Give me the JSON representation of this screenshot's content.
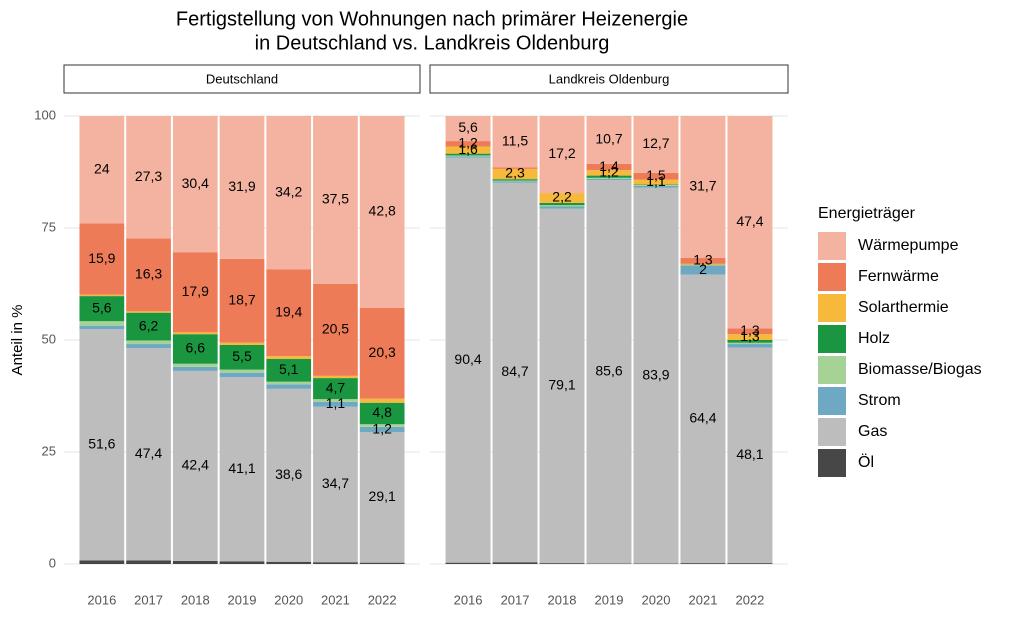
{
  "title": [
    "Fertigstellung von Wohnungen nach primärer Heizenergie",
    "in Deutschland vs. Landkreis Oldenburg"
  ],
  "y_label": "Anteil in %",
  "legend_title": "Energieträger",
  "chart_data": [
    {
      "type": "stacked_bar",
      "facet": "Deutschland",
      "categories": [
        "2016",
        "2017",
        "2018",
        "2019",
        "2020",
        "2021",
        "2022"
      ],
      "ylim": [
        0,
        100
      ],
      "yticks": [
        0,
        25,
        50,
        75,
        100
      ],
      "grid": true,
      "series": [
        {
          "name": "Wärmepumpe",
          "color": "#f4b3a0",
          "values": [
            24,
            27.3,
            30.4,
            31.9,
            34.2,
            37.5,
            42.8
          ],
          "value_labels": [
            "24",
            "27,3",
            "30,4",
            "31,9",
            "34,2",
            "37,5",
            "42,8"
          ]
        },
        {
          "name": "Fernwärme",
          "color": "#ee7b57",
          "values": [
            15.9,
            16.3,
            17.9,
            18.7,
            19.4,
            20.5,
            20.3
          ],
          "value_labels": [
            "15,9",
            "16,3",
            "17,9",
            "18,7",
            "19,4",
            "20,5",
            "20,3"
          ]
        },
        {
          "name": "Solarthermie",
          "color": "#f6b93b",
          "values": [
            0.3,
            0.3,
            0.4,
            0.5,
            0.6,
            0.5,
            0.9
          ],
          "value_labels": [
            null,
            null,
            null,
            null,
            null,
            null,
            null
          ]
        },
        {
          "name": "Holz",
          "color": "#1a9641",
          "values": [
            5.6,
            6.2,
            6.6,
            5.5,
            5.1,
            4.7,
            4.8
          ],
          "value_labels": [
            "5,6",
            "6,2",
            "6,6",
            "5,5",
            "5,1",
            "4,7",
            "4,8"
          ]
        },
        {
          "name": "Biomasse/Biogas",
          "color": "#a6d395",
          "values": [
            1.0,
            0.8,
            0.7,
            0.7,
            0.6,
            0.6,
            0.6
          ],
          "value_labels": [
            null,
            null,
            null,
            null,
            null,
            null,
            null
          ]
        },
        {
          "name": "Strom",
          "color": "#6fa8c2",
          "values": [
            0.8,
            0.9,
            0.9,
            1.0,
            1.0,
            1.1,
            1.2
          ],
          "value_labels": [
            null,
            null,
            null,
            null,
            null,
            "1,1",
            "1,2"
          ]
        },
        {
          "name": "Gas",
          "color": "#bdbdbd",
          "values": [
            51.6,
            47.4,
            42.4,
            41.1,
            38.6,
            34.7,
            29.1
          ],
          "value_labels": [
            "51,6",
            "47,4",
            "42,4",
            "41,1",
            "38,6",
            "34,7",
            "29,1"
          ]
        },
        {
          "name": "Öl",
          "color": "#474747",
          "values": [
            0.8,
            0.8,
            0.7,
            0.6,
            0.5,
            0.4,
            0.3
          ],
          "value_labels": [
            null,
            null,
            null,
            null,
            null,
            null,
            null
          ]
        }
      ]
    },
    {
      "type": "stacked_bar",
      "facet": "Landkreis Oldenburg",
      "categories": [
        "2016",
        "2017",
        "2018",
        "2019",
        "2020",
        "2021",
        "2022"
      ],
      "ylim": [
        0,
        100
      ],
      "yticks": [
        0,
        25,
        50,
        75,
        100
      ],
      "grid": true,
      "series": [
        {
          "name": "Wärmepumpe",
          "color": "#f4b3a0",
          "values": [
            5.6,
            11.5,
            17.2,
            10.7,
            12.7,
            31.7,
            47.4
          ],
          "value_labels": [
            "5,6",
            "11,5",
            "17,2",
            "10,7",
            "12,7",
            "31,7",
            "47,4"
          ]
        },
        {
          "name": "Fernwärme",
          "color": "#ee7b57",
          "values": [
            1.2,
            0.3,
            0.0,
            1.4,
            1.5,
            1.3,
            1.3
          ],
          "value_labels": [
            "1,2",
            null,
            null,
            "1,4",
            "1,5",
            "1,3",
            "1,3"
          ]
        },
        {
          "name": "Solarthermie",
          "color": "#f6b93b",
          "values": [
            1.6,
            2.3,
            2.2,
            1.2,
            1.1,
            0.2,
            1.3
          ],
          "value_labels": [
            "1,6",
            "2,3",
            "2,2",
            "1,2",
            "1,1",
            null,
            "1,3"
          ]
        },
        {
          "name": "Holz",
          "color": "#1a9641",
          "values": [
            0.4,
            0.3,
            0.5,
            0.5,
            0.1,
            0.1,
            0.6
          ],
          "value_labels": [
            null,
            null,
            null,
            null,
            null,
            null,
            null
          ]
        },
        {
          "name": "Biomasse/Biogas",
          "color": "#a6d395",
          "values": [
            0.2,
            0.2,
            0.3,
            0.2,
            0.2,
            0.1,
            0.3
          ],
          "value_labels": [
            null,
            null,
            null,
            null,
            null,
            null,
            null
          ]
        },
        {
          "name": "Strom",
          "color": "#6fa8c2",
          "values": [
            0.3,
            0.3,
            0.5,
            0.3,
            0.4,
            2,
            0.8
          ],
          "value_labels": [
            null,
            null,
            null,
            null,
            null,
            "2",
            null
          ]
        },
        {
          "name": "Gas",
          "color": "#bdbdbd",
          "values": [
            90.4,
            84.7,
            79.1,
            85.6,
            83.9,
            64.4,
            48.1
          ],
          "value_labels": [
            "90,4",
            "84,7",
            "79,1",
            "85,6",
            "83,9",
            "64,4",
            "48,1"
          ]
        },
        {
          "name": "Öl",
          "color": "#474747",
          "values": [
            0.3,
            0.4,
            0.2,
            0.1,
            0.1,
            0.2,
            0.2
          ],
          "value_labels": [
            null,
            null,
            null,
            null,
            null,
            null,
            null
          ]
        }
      ]
    }
  ]
}
